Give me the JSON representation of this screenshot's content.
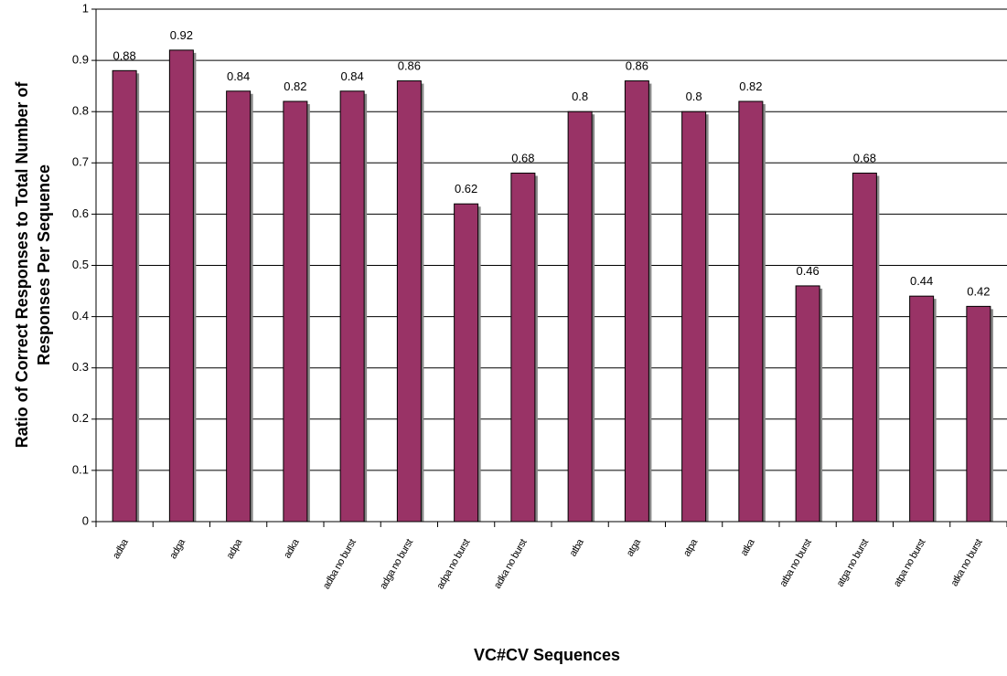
{
  "chart_data": {
    "type": "bar",
    "x_label": "VC#CV Sequences",
    "y_label": [
      "Ratio of Correct Responses to Total Number of",
      "Responses Per Sequence"
    ],
    "categories": [
      "adba",
      "adga",
      "adpa",
      "adka",
      "adba no burst",
      "adga no burst",
      "adpa no burst",
      "adka no burst",
      "atba",
      "atga",
      "atpa",
      "atka",
      "atba no burst",
      "atga no burst",
      "atpa no burst",
      "atka no burst"
    ],
    "values": [
      0.88,
      0.92,
      0.84,
      0.82,
      0.84,
      0.86,
      0.62,
      0.68,
      0.8,
      0.86,
      0.8,
      0.82,
      0.46,
      0.68,
      0.44,
      0.42
    ],
    "color": "#993366",
    "ylim": [
      0,
      1
    ],
    "yticks": [
      0,
      0.1,
      0.2,
      0.3,
      0.4,
      0.5,
      0.6,
      0.7,
      0.8,
      0.9,
      1
    ],
    "grid": true
  }
}
